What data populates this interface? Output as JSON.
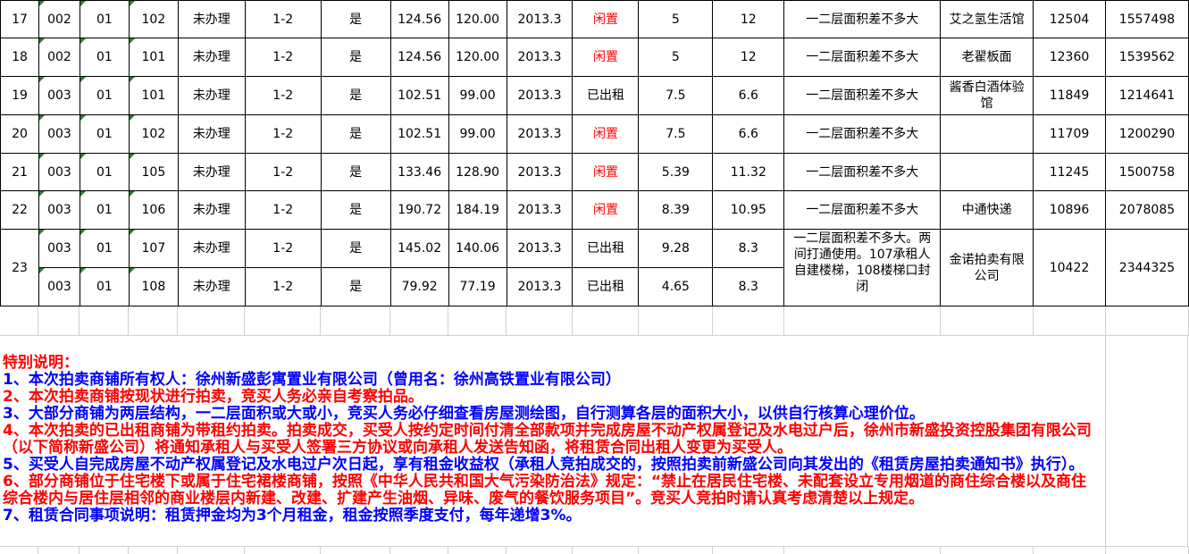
{
  "colors": {
    "red": "#FF0000",
    "blue": "#0000FF",
    "highlight": "#FFFF00",
    "triangle": "#2E7D32",
    "grid": "#D0D0D0"
  },
  "table": {
    "rows": [
      {
        "no": "17",
        "bldg": "002",
        "unit": "01",
        "room": "102",
        "reg": "未办理",
        "floors": "1-2",
        "flag": "是",
        "area1": "124.56",
        "area2": "120.00",
        "date": "2013.3",
        "status": "闲置",
        "status_red": true,
        "rent1": "5",
        "rent2": "12",
        "note": "一二层面积差不多大",
        "merchant": "艾之氢生活馆",
        "v1": "12504",
        "v2": "1557498"
      },
      {
        "no": "18",
        "bldg": "002",
        "unit": "01",
        "room": "101",
        "reg": "未办理",
        "floors": "1-2",
        "flag": "是",
        "area1": "124.56",
        "area2": "120.00",
        "date": "2013.3",
        "status": "闲置",
        "status_red": true,
        "rent1": "5",
        "rent2": "12",
        "note": "一二层面积差不多大",
        "merchant": "老翟板面",
        "v1": "12360",
        "v2": "1539562"
      },
      {
        "no": "19",
        "bldg": "003",
        "unit": "01",
        "room": "101",
        "reg": "未办理",
        "floors": "1-2",
        "flag": "是",
        "area1": "102.51",
        "area2": "99.00",
        "date": "2013.3",
        "status": "已出租",
        "status_red": false,
        "rent1": "7.5",
        "rent2": "6.6",
        "note": "一二层面积差不多大",
        "merchant": "酱香白酒体验馆",
        "v1": "11849",
        "v2": "1214641"
      },
      {
        "no": "20",
        "bldg": "003",
        "unit": "01",
        "room": "102",
        "reg": "未办理",
        "floors": "1-2",
        "flag": "是",
        "area1": "102.51",
        "area2": "99.00",
        "date": "2013.3",
        "status": "闲置",
        "status_red": true,
        "rent1": "7.5",
        "rent2": "6.6",
        "note": "一二层面积差不多大",
        "merchant": "",
        "v1": "11709",
        "v2": "1200290"
      },
      {
        "no": "21",
        "bldg": "003",
        "unit": "01",
        "room": "105",
        "reg": "未办理",
        "floors": "1-2",
        "flag": "是",
        "area1": "133.46",
        "area2": "128.90",
        "date": "2013.3",
        "status": "闲置",
        "status_red": true,
        "rent1": "5.39",
        "rent2": "11.32",
        "note": "一二层面积差不多大",
        "merchant": "",
        "v1": "11245",
        "v2": "1500758"
      },
      {
        "no": "22",
        "bldg": "003",
        "unit": "01",
        "room": "106",
        "reg": "未办理",
        "floors": "1-2",
        "flag": "是",
        "area1": "190.72",
        "area2": "184.19",
        "date": "2013.3",
        "status": "闲置",
        "status_red": true,
        "rent1": "8.39",
        "rent2": "10.95",
        "note": "一二层面积差不多大",
        "merchant": "中通快递",
        "v1": "10896",
        "v2": "2078085"
      },
      {
        "bldg": "003",
        "unit": "01",
        "room": "107",
        "reg": "未办理",
        "floors": "1-2",
        "flag": "是",
        "area1": "145.02",
        "area2": "140.06",
        "date": "2013.3",
        "status": "已出租",
        "status_red": false,
        "rent1": "9.28",
        "rent2": "8.3"
      },
      {
        "bldg": "003",
        "unit": "01",
        "room": "108",
        "reg": "未办理",
        "floors": "1-2",
        "flag": "是",
        "area1": "79.92",
        "area2": "77.19",
        "date": "2013.3",
        "status": "已出租",
        "status_red": false,
        "rent1": "4.65",
        "rent2": "8.3"
      }
    ],
    "merged23": {
      "no": "23",
      "note": "一二层面积差不多大。两间打通使用。107承租人自建楼梯，108楼梯口封闭",
      "merchant": "金诺拍卖有限公司",
      "v1": "10422",
      "v2": "2344325"
    }
  },
  "notes": {
    "lines": [
      {
        "text": "特别说明：",
        "color": "red"
      },
      {
        "text": "1、本次拍卖商铺所有权人：徐州新盛彭寓置业有限公司（曾用名：徐州高铁置业有限公司）",
        "color": "blue"
      },
      {
        "text": "2、本次拍卖商铺按现状进行拍卖，竞买人务必亲自考察拍品。",
        "color": "red"
      },
      {
        "text": "3、大部分商铺为两层结构，一二层面积或大或小，竞买人务必仔细查看房屋测绘图，自行测算各层的面积大小，以供自行核算心理价位。",
        "color": "blue"
      },
      {
        "text": "4、本次拍卖的已出租商铺为带租约拍卖。拍卖成交，买受人按约定时间付清全部款项并完成房屋不动产权属登记及水电过户后，徐州市新盛投资控股集团有限公司",
        "color": "red"
      },
      {
        "text": "（以下简称新盛公司）将通知承租人与买受人签署三方协议或向承租人发送告知函，将租赁合同出租人变更为买受人。",
        "color": "red"
      },
      {
        "text": "5、买受人自完成房屋不动产权属登记及水电过户次日起，享有租金收益权（承租人竞拍成交的，按照拍卖前新盛公司向其发出的《租赁房屋拍卖通知书》执行）。",
        "color": "blue"
      },
      {
        "text": "6、部分商铺位于住宅楼下或属于住宅裙楼商铺，按照《中华人民共和国大气污染防治法》规定：“禁止在居民住宅楼、未配套设立专用烟道的商住综合楼以及商住",
        "color": "red"
      },
      {
        "text": "综合楼内与居住层相邻的商业楼层内新建、改建、扩建产生油烟、异味、废气的餐饮服务项目”。竞买人竞拍时请认真考虑清楚以上规定。",
        "color": "red"
      },
      {
        "text": "7、租赁合同事项说明：租赁押金均为3个月租金，租金按照季度支付，每年递增3%。",
        "color": "blue"
      }
    ]
  }
}
